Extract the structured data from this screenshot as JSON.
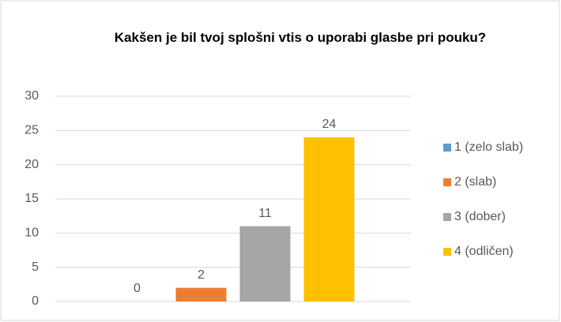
{
  "chart_data": {
    "type": "bar",
    "title": "Kakšen je bil tvoj splošni vtis o uporabi glasbe pri pouku?",
    "categories": [
      null
    ],
    "series": [
      {
        "name": "1 (zelo slab)",
        "color": "#5b9bd5",
        "values": [
          0
        ]
      },
      {
        "name": "2 (slab)",
        "color": "#ed7d31",
        "values": [
          2
        ]
      },
      {
        "name": "3 (dober)",
        "color": "#a5a5a5",
        "values": [
          11
        ]
      },
      {
        "name": "4 (odličen)",
        "color": "#ffc000",
        "values": [
          24
        ]
      }
    ],
    "ylim": [
      0,
      30
    ],
    "yticks": [
      0,
      5,
      10,
      15,
      20,
      25,
      30
    ],
    "grid": true,
    "legend": "right"
  }
}
